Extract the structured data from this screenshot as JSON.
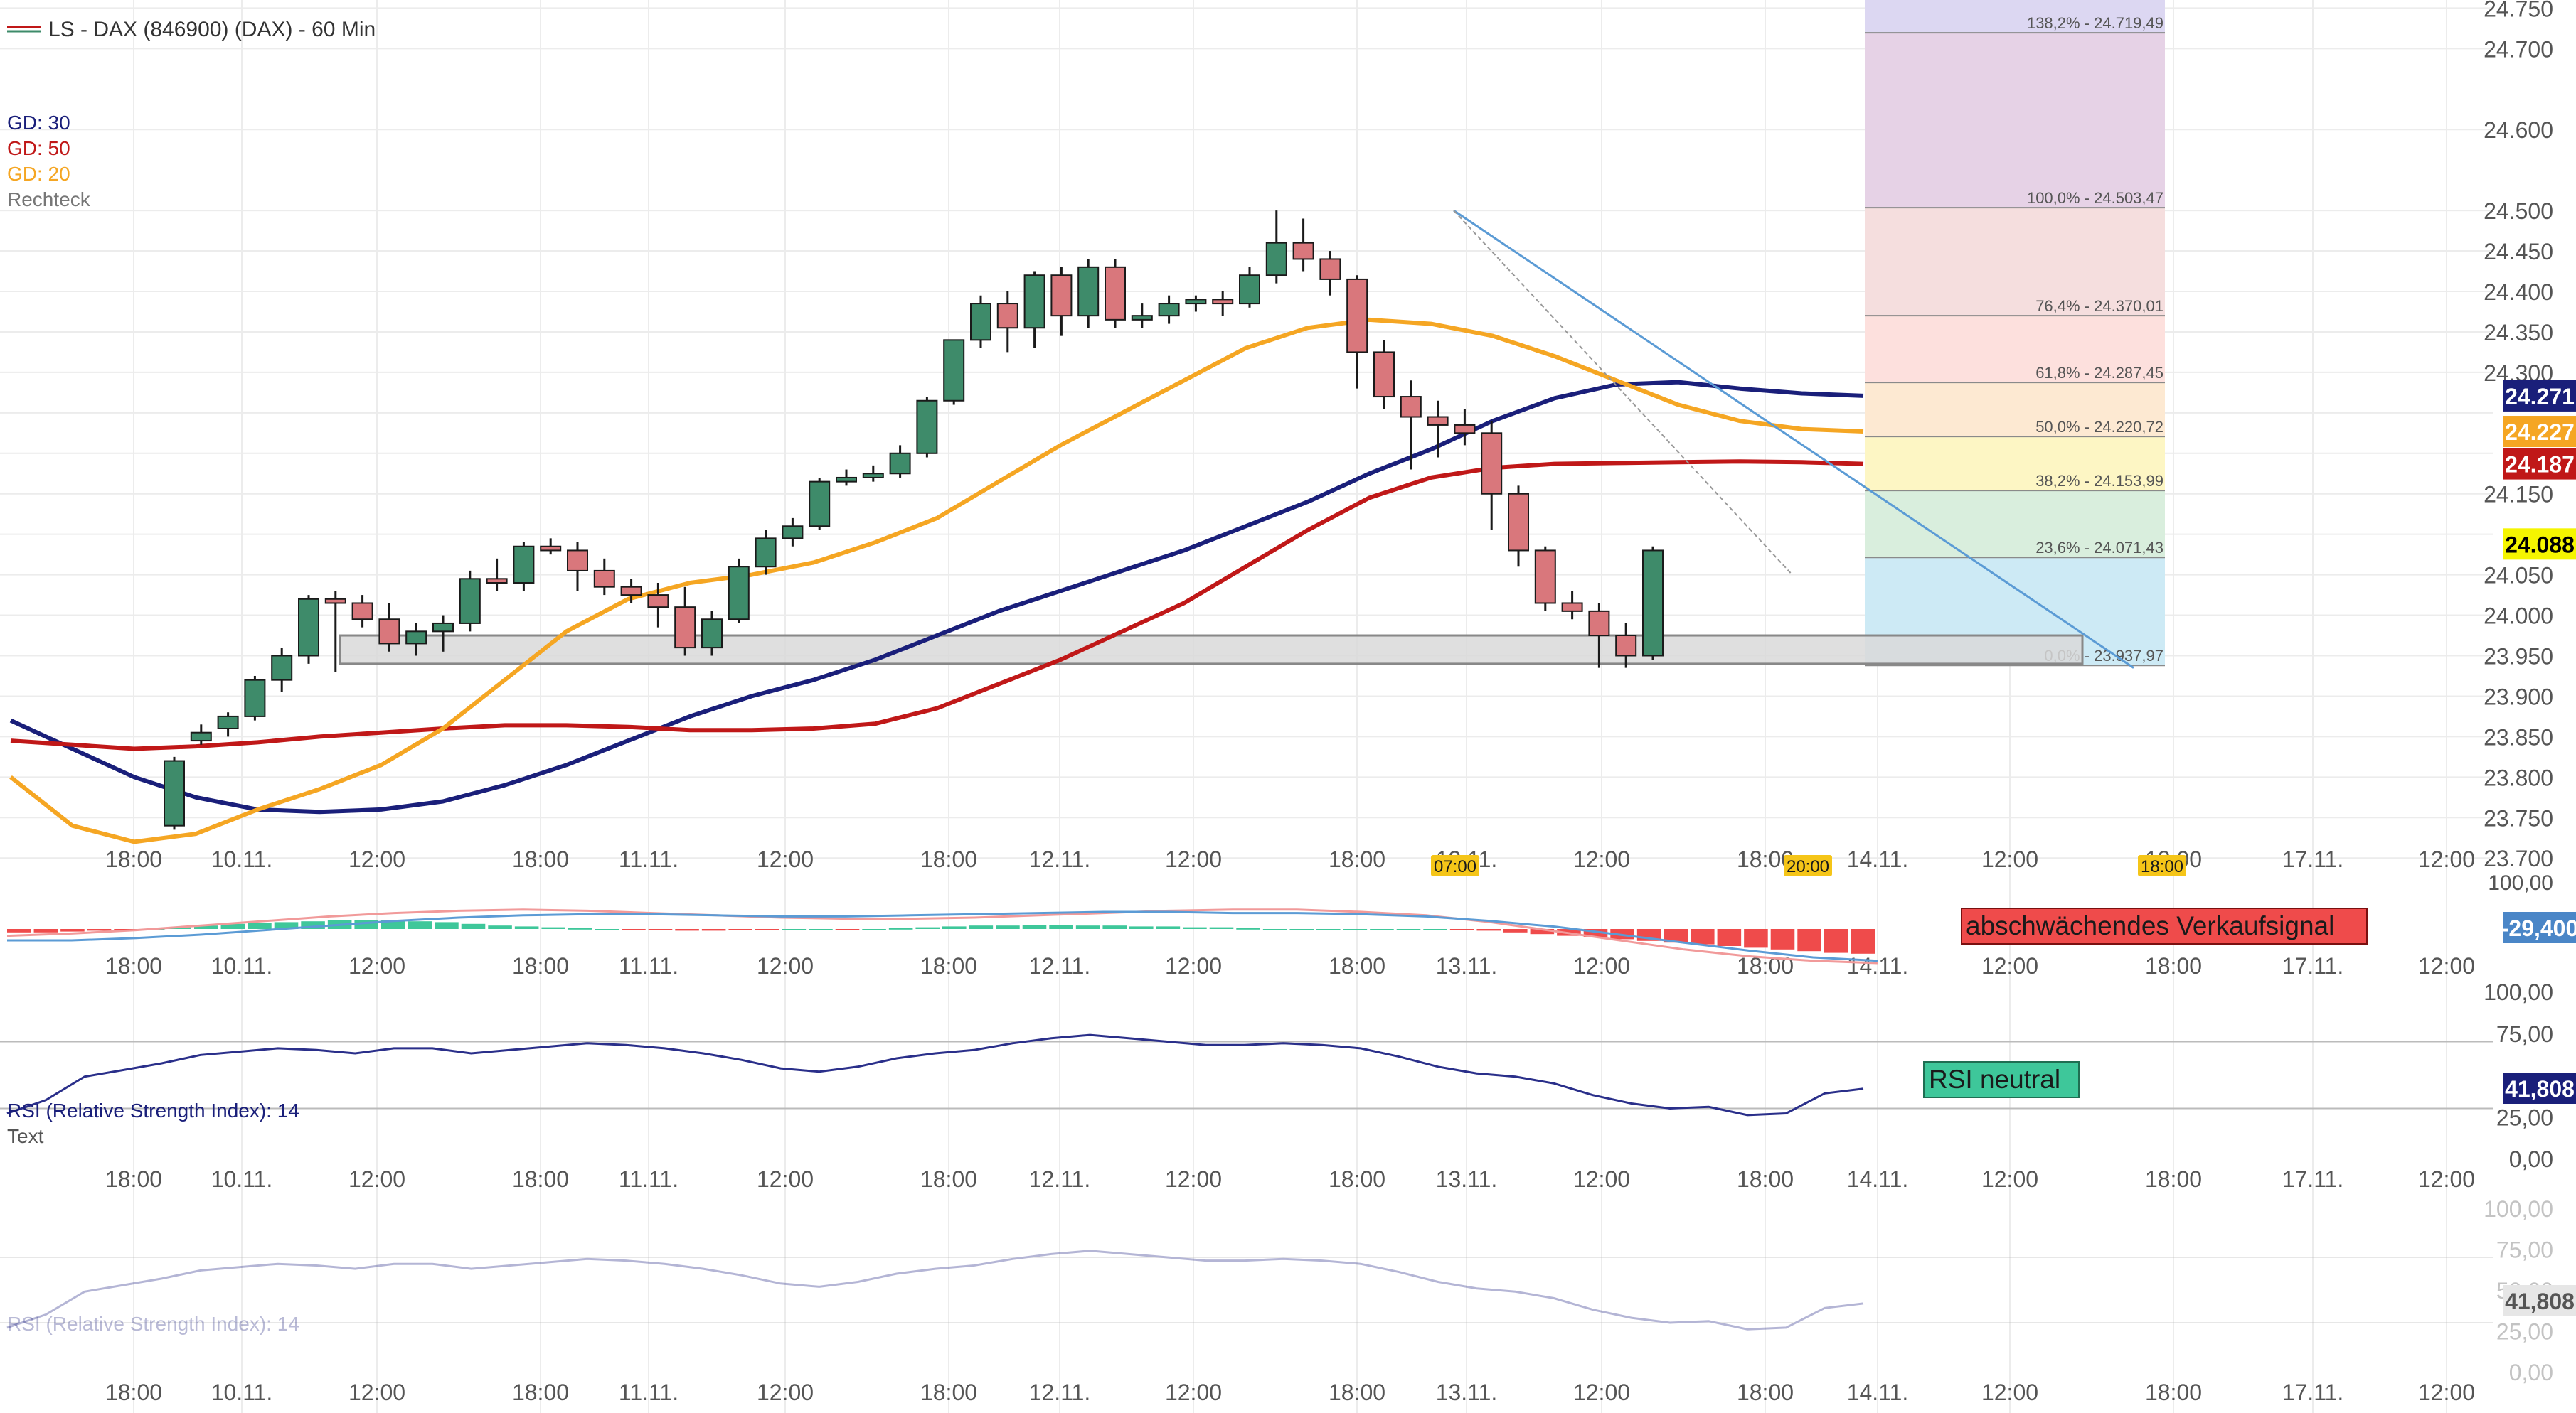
{
  "header": {
    "title": "LS - DAX (846900) (DAX) - 60 Min",
    "legend": [
      {
        "label": "GD: 30",
        "color": "#1a1f7a"
      },
      {
        "label": "GD: 50",
        "color": "#c01818"
      },
      {
        "label": "GD: 20",
        "color": "#f5a623"
      },
      {
        "label": "Rechteck",
        "color": "#777777"
      }
    ]
  },
  "colors": {
    "bull": "#3e8b6a",
    "bear": "#d9777c",
    "grid": "#ececec",
    "ma30": "#1a1f7a",
    "ma50": "#c01818",
    "ma20": "#f5a623",
    "trend": "#5b9bd5",
    "badge": "#f5c518"
  },
  "chart_data": [
    {
      "type": "candlestick",
      "name": "LS - DAX (846900) (DAX) - 60 Min",
      "y_ticks": [
        "24.750",
        "24.700",
        "24.600",
        "24.500",
        "24.450",
        "24.400",
        "24.350",
        "24.300",
        "24.150",
        "24.050",
        "24.000",
        "23.950",
        "23.900",
        "23.850",
        "23.800",
        "23.750",
        "23.700"
      ],
      "ylim": [
        23680,
        24760
      ],
      "x_ticks": [
        "18:00",
        "10.11.",
        "12:00",
        "18:00",
        "11.11.",
        "12:00",
        "18:00",
        "12.11.",
        "12:00",
        "18:00",
        "13.11.",
        "12:00",
        "18:00",
        "14.11.",
        "12:00",
        "18:00",
        "17.11.",
        "12:00"
      ],
      "candles": [
        [
          23740,
          23825,
          23735,
          23820
        ],
        [
          23845,
          23865,
          23840,
          23855
        ],
        [
          23860,
          23880,
          23850,
          23875
        ],
        [
          23875,
          23925,
          23870,
          23920
        ],
        [
          23920,
          23960,
          23905,
          23950
        ],
        [
          23950,
          24025,
          23940,
          24020
        ],
        [
          24020,
          24030,
          23930,
          24015
        ],
        [
          24015,
          24025,
          23985,
          23995
        ],
        [
          23995,
          24015,
          23955,
          23965
        ],
        [
          23965,
          23990,
          23950,
          23980
        ],
        [
          23980,
          24000,
          23955,
          23990
        ],
        [
          23990,
          24055,
          23980,
          24045
        ],
        [
          24045,
          24070,
          24030,
          24040
        ],
        [
          24040,
          24090,
          24030,
          24085
        ],
        [
          24085,
          24095,
          24075,
          24080
        ],
        [
          24080,
          24090,
          24030,
          24055
        ],
        [
          24055,
          24070,
          24025,
          24035
        ],
        [
          24035,
          24045,
          24015,
          24025
        ],
        [
          24025,
          24040,
          23985,
          24010
        ],
        [
          24010,
          24035,
          23950,
          23960
        ],
        [
          23960,
          24005,
          23950,
          23995
        ],
        [
          23995,
          24070,
          23990,
          24060
        ],
        [
          24060,
          24105,
          24050,
          24095
        ],
        [
          24095,
          24120,
          24085,
          24110
        ],
        [
          24110,
          24170,
          24105,
          24165
        ],
        [
          24165,
          24180,
          24160,
          24170
        ],
        [
          24170,
          24185,
          24165,
          24175
        ],
        [
          24175,
          24210,
          24170,
          24200
        ],
        [
          24200,
          24270,
          24195,
          24265
        ],
        [
          24265,
          24340,
          24260,
          24340
        ],
        [
          24340,
          24395,
          24330,
          24385
        ],
        [
          24385,
          24400,
          24325,
          24355
        ],
        [
          24355,
          24425,
          24330,
          24420
        ],
        [
          24420,
          24430,
          24345,
          24370
        ],
        [
          24370,
          24440,
          24355,
          24430
        ],
        [
          24430,
          24440,
          24355,
          24365
        ],
        [
          24365,
          24385,
          24355,
          24370
        ],
        [
          24370,
          24395,
          24360,
          24385
        ],
        [
          24385,
          24395,
          24375,
          24390
        ],
        [
          24390,
          24400,
          24370,
          24385
        ],
        [
          24385,
          24430,
          24380,
          24420
        ],
        [
          24420,
          24500,
          24410,
          24460
        ],
        [
          24460,
          24490,
          24425,
          24440
        ],
        [
          24440,
          24450,
          24395,
          24415
        ],
        [
          24415,
          24420,
          24280,
          24325
        ],
        [
          24325,
          24340,
          24255,
          24270
        ],
        [
          24270,
          24290,
          24180,
          24245
        ],
        [
          24245,
          24265,
          24195,
          24235
        ],
        [
          24235,
          24255,
          24210,
          24225
        ],
        [
          24225,
          24240,
          24105,
          24150
        ],
        [
          24150,
          24160,
          24060,
          24080
        ],
        [
          24080,
          24085,
          24005,
          24015
        ],
        [
          24015,
          24030,
          23995,
          24005
        ],
        [
          24005,
          24015,
          23935,
          23975
        ],
        [
          23975,
          23990,
          23935,
          23950
        ],
        [
          23950,
          24085,
          23945,
          24080
        ]
      ],
      "moving_averages": [
        {
          "name": "GD: 30",
          "color": "#1a1f7a",
          "last": "24.271",
          "values": [
            23870,
            23835,
            23800,
            23775,
            23760,
            23757,
            23760,
            23770,
            23790,
            23815,
            23845,
            23875,
            23900,
            23920,
            23945,
            23975,
            24005,
            24030,
            24055,
            24080,
            24110,
            24140,
            24175,
            24205,
            24240,
            24268,
            24285,
            24288,
            24280,
            24274,
            24271
          ]
        },
        {
          "name": "GD: 50",
          "color": "#c01818",
          "last": "24.187",
          "values": [
            23845,
            23840,
            23835,
            23838,
            23843,
            23850,
            23855,
            23860,
            23864,
            23864,
            23862,
            23858,
            23858,
            23860,
            23866,
            23885,
            23915,
            23945,
            23980,
            24015,
            24060,
            24105,
            24145,
            24170,
            24182,
            24187,
            24188,
            24189,
            24190,
            24189,
            24187
          ]
        },
        {
          "name": "GD: 20",
          "color": "#f5a623",
          "last": "24.227",
          "values": [
            23800,
            23740,
            23720,
            23730,
            23760,
            23785,
            23815,
            23860,
            23920,
            23980,
            24020,
            24040,
            24050,
            24065,
            24090,
            24120,
            24165,
            24210,
            24250,
            24290,
            24330,
            24355,
            24365,
            24360,
            24345,
            24320,
            24290,
            24260,
            24240,
            24230,
            24227
          ]
        }
      ],
      "fibonacci": [
        {
          "label": "138,2% - 24.719,49",
          "value": 24719.49,
          "color": "#dcd7f2"
        },
        {
          "label": "100,0% - 24.503,47",
          "value": 24503.47,
          "color": "#e6d2e6"
        },
        {
          "label": "76,4% - 24.370,01",
          "value": 24370.01,
          "color": "#f5dede"
        },
        {
          "label": "61,8% - 24.287,45",
          "value": 24287.45,
          "color": "#fde0dd"
        },
        {
          "label": "50,0% - 24.220,72",
          "value": 24220.72,
          "color": "#fde9d2"
        },
        {
          "label": "38,2% - 24.153,99",
          "value": 24153.99,
          "color": "#fdf6c4"
        },
        {
          "label": "23,6% - 24.071,43",
          "value": 24071.43,
          "color": "#d9eedd"
        },
        {
          "label": "0,0% - 23.937,97",
          "value": 23937.97,
          "color": "#cdeaf5"
        }
      ],
      "rectangle": {
        "label": "Rechteck",
        "low": 23940,
        "high": 23975
      },
      "trendline": {
        "from": 24500,
        "to": 23935
      },
      "price_badges": [
        {
          "label": "24.271",
          "value": 24271,
          "color": "#1a1f7a",
          "text_color": "#ffffff"
        },
        {
          "label": "24.227",
          "value": 24227,
          "color": "#f5a623",
          "text_color": "#ffffff"
        },
        {
          "label": "24.187",
          "value": 24187,
          "color": "#c01818",
          "text_color": "#ffffff"
        },
        {
          "label": "24.088",
          "value": 24088,
          "color": "#f5f500",
          "text_color": "#000000"
        }
      ],
      "time_badges": [
        "07:00",
        "20:00",
        "18:00"
      ]
    },
    {
      "type": "macd",
      "annotation": "abschwächendes Verkaufsignal",
      "y_ticks": [
        "100,00"
      ],
      "value_badge": "-29,400",
      "histogram": [
        -4,
        -4,
        -3,
        -2,
        -1,
        0,
        2,
        4,
        6,
        7,
        8,
        9,
        10,
        10,
        10,
        9,
        8,
        6,
        4,
        3,
        2,
        1,
        0,
        -1,
        -1,
        -2,
        -2,
        -1,
        -1,
        0,
        0,
        -1,
        0,
        1,
        2,
        3,
        4,
        4,
        5,
        5,
        4,
        4,
        3,
        3,
        2,
        2,
        1,
        0,
        0,
        0,
        0,
        0,
        0,
        0,
        -1,
        -2,
        -4,
        -6,
        -8,
        -10,
        -12,
        -14,
        -16,
        -18,
        -20,
        -22,
        -24,
        -26,
        -28,
        -29
      ],
      "lines": [
        {
          "name": "signal",
          "color": "#f19a9a",
          "values": [
            -6,
            -4,
            -1,
            3,
            7,
            11,
            14,
            16,
            17,
            16,
            14,
            12,
            10,
            9,
            9,
            10,
            12,
            14,
            16,
            17,
            17,
            15,
            12,
            6,
            -2,
            -10,
            -18,
            -24,
            -28,
            -30
          ]
        },
        {
          "name": "macd",
          "color": "#5b9bd5",
          "values": [
            -10,
            -10,
            -8,
            -5,
            -1,
            3,
            7,
            10,
            12,
            13,
            13,
            12,
            11,
            11,
            12,
            13,
            14,
            15,
            15,
            14,
            14,
            13,
            11,
            7,
            2,
            -5,
            -12,
            -19,
            -25,
            -28
          ]
        }
      ]
    },
    {
      "type": "line",
      "name": "RSI (Relative Strength Index): 14",
      "sublabel": "Text",
      "annotation": "RSI neutral",
      "y_ticks": [
        "100,00",
        "75,00",
        "25,00",
        "0,00"
      ],
      "ylim": [
        0,
        100
      ],
      "bands": [
        30,
        70
      ],
      "value_badge": "41,808",
      "values": [
        27,
        35,
        49,
        53,
        57,
        62,
        64,
        66,
        65,
        63,
        66,
        66,
        63,
        65,
        67,
        69,
        68,
        66,
        63,
        59,
        54,
        52,
        55,
        60,
        63,
        65,
        69,
        72,
        74,
        72,
        70,
        68,
        68,
        69,
        68,
        66,
        61,
        55,
        51,
        49,
        45,
        38,
        33,
        30,
        31,
        26,
        27,
        39,
        41.8
      ]
    },
    {
      "type": "line",
      "name": "RSI (Relative Strength Index): 14",
      "y_ticks": [
        "100,00",
        "75,00",
        "50,00",
        "25,00",
        "0,00"
      ],
      "ylim": [
        0,
        100
      ],
      "value_badge": "41,808",
      "values": [
        27,
        35,
        49,
        53,
        57,
        62,
        64,
        66,
        65,
        63,
        66,
        66,
        63,
        65,
        67,
        69,
        68,
        66,
        63,
        59,
        54,
        52,
        55,
        60,
        63,
        65,
        69,
        72,
        74,
        72,
        70,
        68,
        68,
        69,
        68,
        66,
        61,
        55,
        51,
        49,
        45,
        38,
        33,
        30,
        31,
        26,
        27,
        39,
        41.8
      ]
    }
  ]
}
